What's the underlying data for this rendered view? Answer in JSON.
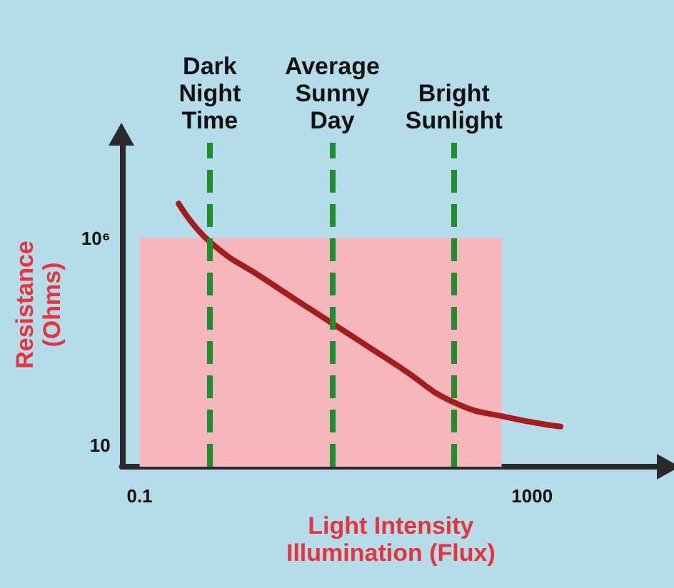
{
  "chart_data": {
    "type": "line",
    "xlabel": "Light Intensity\nIllumination (Flux)",
    "ylabel": "Resistance\n(Ohms)",
    "log": "xy",
    "xlim": [
      0.066,
      20000
    ],
    "ylim": [
      3,
      200000000
    ],
    "xticks": [
      0.1,
      1000
    ],
    "yticks": [
      {
        "value": 1000000,
        "label": "10⁶"
      },
      10
    ],
    "grid": false,
    "marker": "none",
    "line_style": "solid",
    "series": [
      {
        "type": "area",
        "color": "#f7b6bb",
        "x": [
          0.1,
          490
        ],
        "values": [
          1000000,
          1000000
        ]
      },
      {
        "type": "line",
        "color": "#a51c1c",
        "x": [
          0.25,
          0.52,
          1.9,
          9.2,
          45,
          160,
          575,
          1950
        ],
        "values": [
          6800000,
          810000,
          100000,
          8700,
          760,
          107,
          46,
          28
        ]
      }
    ],
    "ref_lines": [
      {
        "axis": "x",
        "value": 0.52,
        "label": "Dark\nNight\nTime",
        "color": "#1e8f2e",
        "line_style": "dashed"
      },
      {
        "axis": "x",
        "value": 9.2,
        "label": "Average\nSunny\nDay",
        "color": "#1e8f2e",
        "line_style": "dashed"
      },
      {
        "axis": "x",
        "value": 160,
        "label": "Bright\nSunlight",
        "color": "#1e8f2e",
        "line_style": "dashed"
      }
    ]
  }
}
